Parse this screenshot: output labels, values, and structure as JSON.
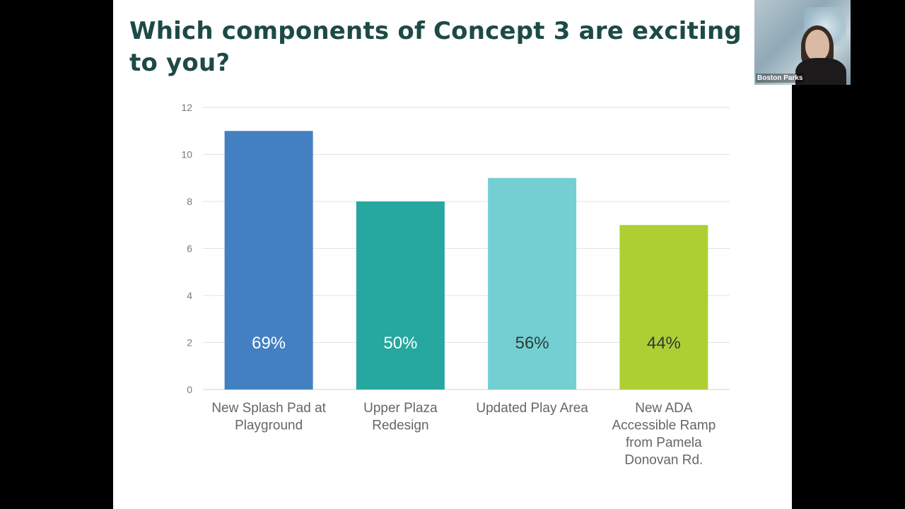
{
  "slide": {
    "title": "Which components of Concept 3 are exciting\nto you?"
  },
  "video_tile": {
    "participant_name": "Boston Parks"
  },
  "colors": {
    "title": "#1d4a47",
    "bars": [
      "#4380c1",
      "#26a79f",
      "#74cfd2",
      "#aecf34"
    ],
    "gridline": "#e2e2e2",
    "axis_text": "#7a7a7a",
    "category_text": "#666666"
  },
  "chart_data": {
    "type": "bar",
    "categories": [
      [
        "New Splash Pad at",
        "Playground"
      ],
      [
        "Upper Plaza",
        "Redesign"
      ],
      [
        "Updated Play Area"
      ],
      [
        "New ADA",
        "Accessible Ramp",
        "from Pamela",
        "Donovan Rd."
      ]
    ],
    "values": [
      11,
      8,
      9,
      7
    ],
    "data_labels": [
      "69%",
      "50%",
      "56%",
      "44%"
    ],
    "data_label_colors": [
      "#ffffff",
      "#ffffff",
      "#2b3a3a",
      "#2b3a3a"
    ],
    "yticks": [
      "0",
      "2",
      "4",
      "6",
      "8",
      "10",
      "12"
    ],
    "ylim": [
      0,
      12
    ],
    "grid": true,
    "legend": "none"
  }
}
